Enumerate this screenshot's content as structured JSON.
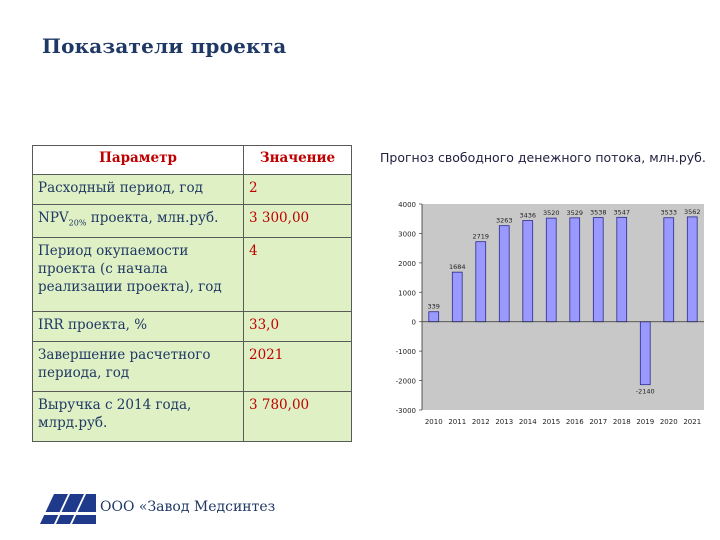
{
  "page": {
    "title": "Показатели проекта",
    "footer_company": "ООО «Завод Медсинтез"
  },
  "table": {
    "headers": [
      "Параметр",
      "Значение"
    ],
    "rows": [
      {
        "param": "Расходный период, год",
        "value": "2"
      },
      {
        "param_prefix": "NPV",
        "param_sub": "20%",
        "param_suffix": " проекта, млн.руб.",
        "value": " 3 300,00"
      },
      {
        "param": "Период окупаемости проекта (с начала реализации проекта), год",
        "value": "4"
      },
      {
        "param": "IRR проекта, %",
        "value": "33,0"
      },
      {
        "param": "Завершение расчетного периода, год",
        "value": "2021"
      },
      {
        "param": "Выручка с 2014 года, млрд.руб.",
        "value": "3 780,00"
      }
    ]
  },
  "chart_data": {
    "type": "bar",
    "title": "Прогноз свободного денежного потока, млн.руб.",
    "categories": [
      "2010",
      "2011",
      "2012",
      "2013",
      "2014",
      "2015",
      "2016",
      "2017",
      "2018",
      "2019",
      "2020",
      "2021"
    ],
    "values": [
      339,
      1684,
      2719,
      3263,
      3436,
      3520,
      3529,
      3538,
      3547,
      -2140,
      3533,
      3562
    ],
    "data_labels": [
      "339",
      "1684",
      "2719",
      "3263",
      "3436",
      "3520",
      "3529",
      "3538",
      "3547",
      "-2140",
      "3533",
      "3562"
    ],
    "ylim": [
      -3000,
      4000
    ],
    "yticks": [
      4000,
      3000,
      2000,
      1000,
      0,
      -1000,
      -2000,
      -3000
    ],
    "ytick_labels": [
      "4000",
      "3000",
      "2000",
      "1000",
      "0",
      "-1000",
      "-2000",
      "-3000"
    ],
    "grid": false,
    "colors": {
      "bar_fill": "#9999ff",
      "bar_stroke": "#2a2a8a",
      "plot_bg": "#c8c8c8"
    }
  }
}
